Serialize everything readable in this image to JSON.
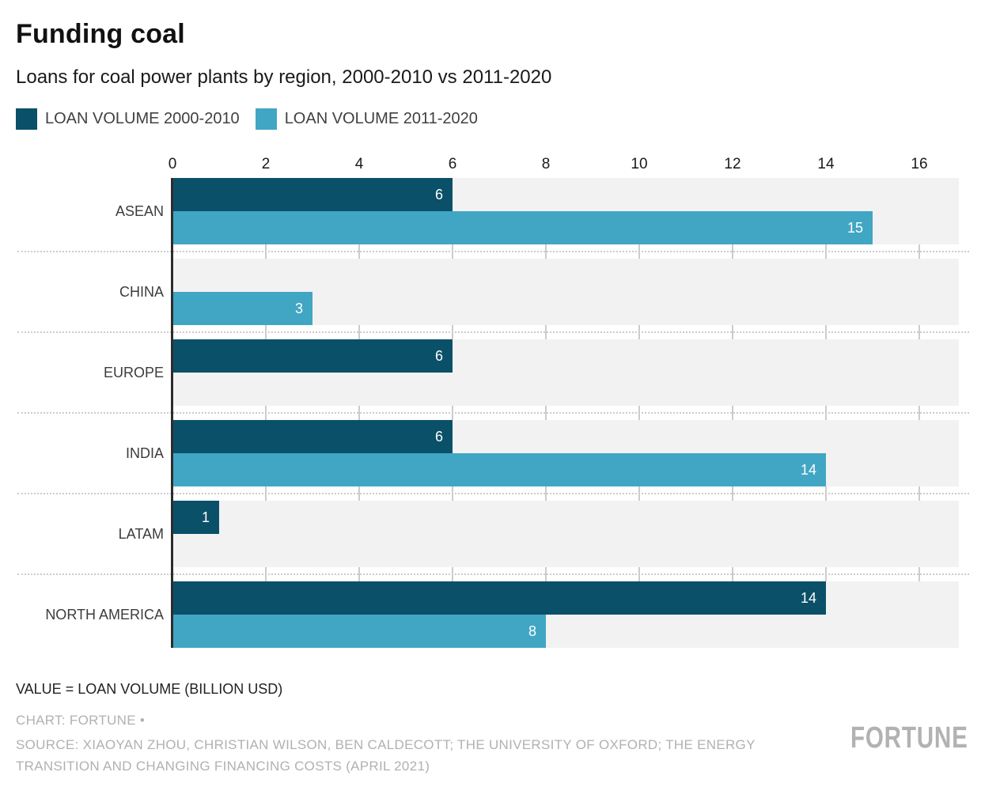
{
  "header": {
    "title": "Funding coal",
    "subtitle": "Loans for coal power plants by region, 2000-2010 vs 2011-2020"
  },
  "legend": {
    "items": [
      {
        "label": "LOAN VOLUME 2000-2010",
        "color": "#0b5069"
      },
      {
        "label": "LOAN VOLUME 2011-2020",
        "color": "#41a6c4"
      }
    ]
  },
  "chart_data": {
    "type": "bar",
    "orientation": "horizontal",
    "title": "Funding coal",
    "subtitle": "Loans for coal power plants by region, 2000-2010 vs 2011-2020",
    "categories": [
      "ASEAN",
      "CHINA",
      "EUROPE",
      "INDIA",
      "LATAM",
      "NORTH AMERICA"
    ],
    "series": [
      {
        "name": "LOAN VOLUME 2000-2010",
        "color": "#0b5069",
        "values": [
          6,
          0,
          6,
          6,
          1,
          14
        ]
      },
      {
        "name": "LOAN VOLUME 2011-2020",
        "color": "#41a6c4",
        "values": [
          15,
          3,
          0,
          14,
          0,
          8
        ]
      }
    ],
    "x_ticks": [
      0,
      2,
      4,
      6,
      8,
      10,
      12,
      14,
      16
    ],
    "xlim": [
      0,
      17
    ],
    "value_unit": "BILLION USD",
    "grid": "vertical gridlines every 2 units",
    "legend_position": "top",
    "bar_labels": "value shown in white inside right end of bar; zero values show no bar and no label",
    "colors": {
      "strip_background": "#f2f2f2",
      "gridline": "#cccccc",
      "axis_line": "#2d2d2d",
      "separator_dotted": "#cccccc"
    }
  },
  "footer": {
    "value_note": "VALUE = LOAN VOLUME (BILLION USD)",
    "credit": "CHART: FORTUNE •",
    "source": "SOURCE: XIAOYAN ZHOU, CHRISTIAN WILSON, BEN CALDECOTT; THE UNIVERSITY OF OXFORD; THE ENERGY TRANSITION AND CHANGING FINANCING COSTS (APRIL 2021)",
    "logo_text": "FORTUNE"
  }
}
